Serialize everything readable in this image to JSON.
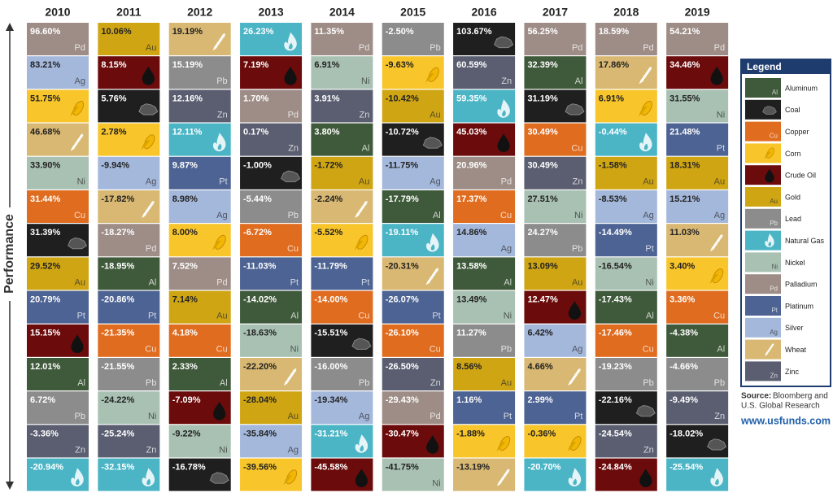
{
  "axis_label": "Performance",
  "columns": [
    {
      "year": "2010",
      "cells": [
        {
          "v": "96.60%",
          "c": "Palladium"
        },
        {
          "v": "83.21%",
          "c": "Silver"
        },
        {
          "v": "51.75%",
          "c": "Corn"
        },
        {
          "v": "46.68%",
          "c": "Wheat"
        },
        {
          "v": "33.90%",
          "c": "Nickel"
        },
        {
          "v": "31.44%",
          "c": "Copper"
        },
        {
          "v": "31.39%",
          "c": "Coal"
        },
        {
          "v": "29.52%",
          "c": "Gold"
        },
        {
          "v": "20.79%",
          "c": "Platinum"
        },
        {
          "v": "15.15%",
          "c": "Crude Oil"
        },
        {
          "v": "12.01%",
          "c": "Aluminum"
        },
        {
          "v": "6.72%",
          "c": "Lead"
        },
        {
          "v": "-3.36%",
          "c": "Zinc"
        },
        {
          "v": "-20.94%",
          "c": "Natural Gas"
        }
      ]
    },
    {
      "year": "2011",
      "cells": [
        {
          "v": "10.06%",
          "c": "Gold"
        },
        {
          "v": "8.15%",
          "c": "Crude Oil"
        },
        {
          "v": "5.76%",
          "c": "Coal"
        },
        {
          "v": "2.78%",
          "c": "Corn"
        },
        {
          "v": "-9.94%",
          "c": "Silver"
        },
        {
          "v": "-17.82%",
          "c": "Wheat"
        },
        {
          "v": "-18.27%",
          "c": "Palladium"
        },
        {
          "v": "-18.95%",
          "c": "Aluminum"
        },
        {
          "v": "-20.86%",
          "c": "Platinum"
        },
        {
          "v": "-21.35%",
          "c": "Copper"
        },
        {
          "v": "-21.55%",
          "c": "Lead"
        },
        {
          "v": "-24.22%",
          "c": "Nickel"
        },
        {
          "v": "-25.24%",
          "c": "Zinc"
        },
        {
          "v": "-32.15%",
          "c": "Natural Gas"
        }
      ]
    },
    {
      "year": "2012",
      "cells": [
        {
          "v": "19.19%",
          "c": "Wheat"
        },
        {
          "v": "15.19%",
          "c": "Lead"
        },
        {
          "v": "12.16%",
          "c": "Zinc"
        },
        {
          "v": "12.11%",
          "c": "Natural Gas"
        },
        {
          "v": "9.87%",
          "c": "Platinum"
        },
        {
          "v": "8.98%",
          "c": "Silver"
        },
        {
          "v": "8.00%",
          "c": "Corn"
        },
        {
          "v": "7.52%",
          "c": "Palladium"
        },
        {
          "v": "7.14%",
          "c": "Gold"
        },
        {
          "v": "4.18%",
          "c": "Copper"
        },
        {
          "v": "2.33%",
          "c": "Aluminum"
        },
        {
          "v": "-7.09%",
          "c": "Crude Oil"
        },
        {
          "v": "-9.22%",
          "c": "Nickel"
        },
        {
          "v": "-16.78%",
          "c": "Coal"
        }
      ]
    },
    {
      "year": "2013",
      "cells": [
        {
          "v": "26.23%",
          "c": "Natural Gas"
        },
        {
          "v": "7.19%",
          "c": "Crude Oil"
        },
        {
          "v": "1.70%",
          "c": "Palladium"
        },
        {
          "v": "0.17%",
          "c": "Zinc"
        },
        {
          "v": "-1.00%",
          "c": "Coal"
        },
        {
          "v": "-5.44%",
          "c": "Lead"
        },
        {
          "v": "-6.72%",
          "c": "Copper"
        },
        {
          "v": "-11.03%",
          "c": "Platinum"
        },
        {
          "v": "-14.02%",
          "c": "Aluminum"
        },
        {
          "v": "-18.63%",
          "c": "Nickel"
        },
        {
          "v": "-22.20%",
          "c": "Wheat"
        },
        {
          "v": "-28.04%",
          "c": "Gold"
        },
        {
          "v": "-35.84%",
          "c": "Silver"
        },
        {
          "v": "-39.56%",
          "c": "Corn"
        }
      ]
    },
    {
      "year": "2014",
      "cells": [
        {
          "v": "11.35%",
          "c": "Palladium"
        },
        {
          "v": "6.91%",
          "c": "Nickel"
        },
        {
          "v": "3.91%",
          "c": "Zinc"
        },
        {
          "v": "3.80%",
          "c": "Aluminum"
        },
        {
          "v": "-1.72%",
          "c": "Gold"
        },
        {
          "v": "-2.24%",
          "c": "Wheat"
        },
        {
          "v": "-5.52%",
          "c": "Corn"
        },
        {
          "v": "-11.79%",
          "c": "Platinum"
        },
        {
          "v": "-14.00%",
          "c": "Copper"
        },
        {
          "v": "-15.51%",
          "c": "Coal"
        },
        {
          "v": "-16.00%",
          "c": "Lead"
        },
        {
          "v": "-19.34%",
          "c": "Silver"
        },
        {
          "v": "-31.21%",
          "c": "Natural Gas"
        },
        {
          "v": "-45.58%",
          "c": "Crude Oil"
        }
      ]
    },
    {
      "year": "2015",
      "cells": [
        {
          "v": "-2.50%",
          "c": "Lead"
        },
        {
          "v": "-9.63%",
          "c": "Corn"
        },
        {
          "v": "-10.42%",
          "c": "Gold"
        },
        {
          "v": "-10.72%",
          "c": "Coal"
        },
        {
          "v": "-11.75%",
          "c": "Silver"
        },
        {
          "v": "-17.79%",
          "c": "Aluminum"
        },
        {
          "v": "-19.11%",
          "c": "Natural Gas"
        },
        {
          "v": "-20.31%",
          "c": "Wheat"
        },
        {
          "v": "-26.07%",
          "c": "Platinum"
        },
        {
          "v": "-26.10%",
          "c": "Copper"
        },
        {
          "v": "-26.50%",
          "c": "Zinc"
        },
        {
          "v": "-29.43%",
          "c": "Palladium"
        },
        {
          "v": "-30.47%",
          "c": "Crude Oil"
        },
        {
          "v": "-41.75%",
          "c": "Nickel"
        }
      ]
    },
    {
      "year": "2016",
      "cells": [
        {
          "v": "103.67%",
          "c": "Coal"
        },
        {
          "v": "60.59%",
          "c": "Zinc"
        },
        {
          "v": "59.35%",
          "c": "Natural Gas"
        },
        {
          "v": "45.03%",
          "c": "Crude Oil"
        },
        {
          "v": "20.96%",
          "c": "Palladium"
        },
        {
          "v": "17.37%",
          "c": "Copper"
        },
        {
          "v": "14.86%",
          "c": "Silver"
        },
        {
          "v": "13.58%",
          "c": "Aluminum"
        },
        {
          "v": "13.49%",
          "c": "Nickel"
        },
        {
          "v": "11.27%",
          "c": "Lead"
        },
        {
          "v": "8.56%",
          "c": "Gold"
        },
        {
          "v": "1.16%",
          "c": "Platinum"
        },
        {
          "v": "-1.88%",
          "c": "Corn"
        },
        {
          "v": "-13.19%",
          "c": "Wheat"
        }
      ]
    },
    {
      "year": "2017",
      "cells": [
        {
          "v": "56.25%",
          "c": "Palladium"
        },
        {
          "v": "32.39%",
          "c": "Aluminum"
        },
        {
          "v": "31.19%",
          "c": "Coal"
        },
        {
          "v": "30.49%",
          "c": "Copper"
        },
        {
          "v": "30.49%",
          "c": "Zinc"
        },
        {
          "v": "27.51%",
          "c": "Nickel"
        },
        {
          "v": "24.27%",
          "c": "Lead"
        },
        {
          "v": "13.09%",
          "c": "Gold"
        },
        {
          "v": "12.47%",
          "c": "Crude Oil"
        },
        {
          "v": "6.42%",
          "c": "Silver"
        },
        {
          "v": "4.66%",
          "c": "Wheat"
        },
        {
          "v": "2.99%",
          "c": "Platinum"
        },
        {
          "v": "-0.36%",
          "c": "Corn"
        },
        {
          "v": "-20.70%",
          "c": "Natural Gas"
        }
      ]
    },
    {
      "year": "2018",
      "cells": [
        {
          "v": "18.59%",
          "c": "Palladium"
        },
        {
          "v": "17.86%",
          "c": "Wheat"
        },
        {
          "v": "6.91%",
          "c": "Corn"
        },
        {
          "v": "-0.44%",
          "c": "Natural Gas"
        },
        {
          "v": "-1.58%",
          "c": "Gold"
        },
        {
          "v": "-8.53%",
          "c": "Silver"
        },
        {
          "v": "-14.49%",
          "c": "Platinum"
        },
        {
          "v": "-16.54%",
          "c": "Nickel"
        },
        {
          "v": "-17.43%",
          "c": "Aluminum"
        },
        {
          "v": "-17.46%",
          "c": "Copper"
        },
        {
          "v": "-19.23%",
          "c": "Lead"
        },
        {
          "v": "-22.16%",
          "c": "Coal"
        },
        {
          "v": "-24.54%",
          "c": "Zinc"
        },
        {
          "v": "-24.84%",
          "c": "Crude Oil"
        }
      ]
    },
    {
      "year": "2019",
      "cells": [
        {
          "v": "54.21%",
          "c": "Palladium"
        },
        {
          "v": "34.46%",
          "c": "Crude Oil"
        },
        {
          "v": "31.55%",
          "c": "Nickel"
        },
        {
          "v": "21.48%",
          "c": "Platinum"
        },
        {
          "v": "18.31%",
          "c": "Gold"
        },
        {
          "v": "15.21%",
          "c": "Silver"
        },
        {
          "v": "11.03%",
          "c": "Wheat"
        },
        {
          "v": "3.40%",
          "c": "Corn"
        },
        {
          "v": "3.36%",
          "c": "Copper"
        },
        {
          "v": "-4.38%",
          "c": "Aluminum"
        },
        {
          "v": "-4.66%",
          "c": "Lead"
        },
        {
          "v": "-9.49%",
          "c": "Zinc"
        },
        {
          "v": "-18.02%",
          "c": "Coal"
        },
        {
          "v": "-25.54%",
          "c": "Natural Gas"
        }
      ]
    }
  ],
  "legend": {
    "title": "Legend",
    "items": [
      {
        "name": "Aluminum",
        "symbol": "Al",
        "color": "#3f5a3a"
      },
      {
        "name": "Coal",
        "icon": "coal",
        "color": "#1f1f1f"
      },
      {
        "name": "Copper",
        "symbol": "Cu",
        "color": "#e06c1f"
      },
      {
        "name": "Corn",
        "icon": "corn",
        "color": "#f8c52b"
      },
      {
        "name": "Crude Oil",
        "icon": "drop",
        "color": "#6b0b0b"
      },
      {
        "name": "Gold",
        "symbol": "Au",
        "color": "#cfa514"
      },
      {
        "name": "Lead",
        "symbol": "Pb",
        "color": "#8c8c8c"
      },
      {
        "name": "Natural Gas",
        "icon": "flame",
        "color": "#4bb5c6"
      },
      {
        "name": "Nickel",
        "symbol": "Ni",
        "color": "#a8c1b2"
      },
      {
        "name": "Palladium",
        "symbol": "Pd",
        "color": "#9e8d87"
      },
      {
        "name": "Platinum",
        "symbol": "Pt",
        "color": "#4d6393"
      },
      {
        "name": "Silver",
        "symbol": "Ag",
        "color": "#a4b8dc"
      },
      {
        "name": "Wheat",
        "icon": "wheat",
        "color": "#d8b872"
      },
      {
        "name": "Zinc",
        "symbol": "Zn",
        "color": "#5a5e70"
      }
    ]
  },
  "source_label": "Source:",
  "source_lines": [
    "Bloomberg and",
    "U.S. Global Research"
  ],
  "url": "www.usfunds.com"
}
